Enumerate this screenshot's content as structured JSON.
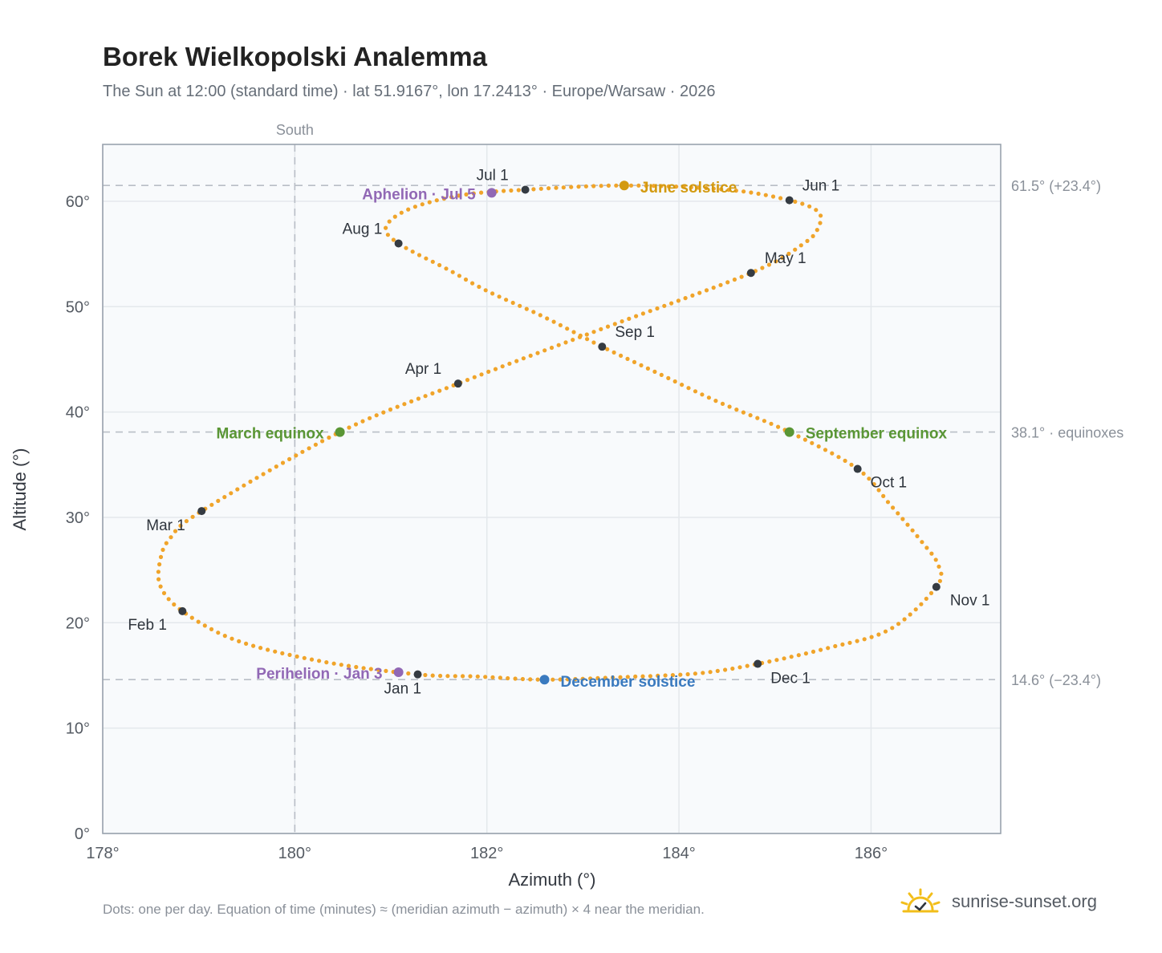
{
  "page": {
    "title": "Borek Wielkopolski Analemma",
    "subtitle": "The Sun at 12:00 (standard time) · lat 51.9167°, lon 17.2413° · Europe/Warsaw · 2026",
    "footnote": "Dots: one per day. Equation of time (minutes) ≈ (meridian azimuth − azimuth) × 4 near the meridian.",
    "brand": "sunrise-sunset.org"
  },
  "colors": {
    "path": "#f0a42a",
    "month_marker": "#353b42",
    "solstice_june": "#d39a10",
    "solstice_december": "#3a7abf",
    "equinox": "#5a9635",
    "apsis": "#9168b5",
    "reference_line": "#b9bec6",
    "grid": "#e4e8ec",
    "plot_bg": "#f8fafc",
    "frame": "#9aa3ae",
    "brand_sun": "#f2be1a"
  },
  "chart_data": {
    "type": "scatter",
    "title": "Borek Wielkopolski Analemma",
    "xlabel": "Azimuth (°)",
    "ylabel": "Altitude (°)",
    "xlim": [
      178,
      187.35
    ],
    "ylim": [
      0,
      65.4
    ],
    "xticks": [
      178,
      180,
      182,
      184,
      186
    ],
    "xtick_labels": [
      "178°",
      "180°",
      "182°",
      "184°",
      "186°"
    ],
    "yticks": [
      0,
      10,
      20,
      30,
      40,
      50,
      60
    ],
    "ytick_labels": [
      "0°",
      "10°",
      "20°",
      "30°",
      "40°",
      "50°",
      "60°"
    ],
    "grid": true,
    "meridian": {
      "x": 180,
      "label": "South"
    },
    "reference_lines": [
      {
        "y": 61.5,
        "label": "61.5° (+23.4°)"
      },
      {
        "y": 38.1,
        "label": "38.1° · equinoxes"
      },
      {
        "y": 14.6,
        "label": "14.6° (−23.4°)"
      }
    ],
    "series": [
      {
        "marker": "daily dot",
        "points": [
          [
            181.28,
            15.1
          ],
          [
            181.9,
            14.9
          ],
          [
            182.6,
            14.6
          ],
          [
            183.43,
            14.85
          ],
          [
            184.2,
            15.2
          ],
          [
            184.82,
            16.1
          ],
          [
            185.55,
            17.6
          ],
          [
            186.2,
            19.4
          ],
          [
            186.68,
            23.4
          ],
          [
            186.7,
            25.5
          ],
          [
            186.5,
            28.0
          ],
          [
            186.2,
            31.2
          ],
          [
            185.86,
            34.6
          ],
          [
            185.15,
            38.1
          ],
          [
            184.4,
            41.0
          ],
          [
            183.8,
            43.6
          ],
          [
            183.2,
            46.2
          ],
          [
            182.6,
            49.0
          ],
          [
            182.0,
            51.5
          ],
          [
            181.6,
            53.5
          ],
          [
            181.08,
            56.0
          ],
          [
            180.95,
            57.6
          ],
          [
            181.2,
            59.3
          ],
          [
            181.75,
            60.6
          ],
          [
            182.4,
            61.1
          ],
          [
            183.43,
            61.5
          ],
          [
            184.5,
            61.1
          ],
          [
            185.15,
            60.1
          ],
          [
            185.45,
            59.0
          ],
          [
            185.45,
            57.5
          ],
          [
            185.3,
            56.0
          ],
          [
            184.75,
            53.2
          ],
          [
            183.2,
            47.9
          ],
          [
            181.7,
            42.7
          ],
          [
            180.47,
            38.1
          ],
          [
            179.03,
            30.6
          ],
          [
            178.7,
            28.0
          ],
          [
            178.6,
            26.0
          ],
          [
            178.6,
            23.5
          ],
          [
            178.83,
            21.1
          ],
          [
            179.4,
            18.3
          ],
          [
            180.3,
            16.3
          ],
          [
            181.28,
            15.1
          ]
        ]
      }
    ],
    "month_markers": [
      {
        "label": "Jan 1",
        "x": 181.28,
        "y": 15.1
      },
      {
        "label": "Feb 1",
        "x": 178.83,
        "y": 21.1
      },
      {
        "label": "Mar 1",
        "x": 179.03,
        "y": 30.6
      },
      {
        "label": "Apr 1",
        "x": 181.7,
        "y": 42.7
      },
      {
        "label": "May 1",
        "x": 184.75,
        "y": 53.2
      },
      {
        "label": "Jun 1",
        "x": 185.15,
        "y": 60.1
      },
      {
        "label": "Jul 1",
        "x": 182.4,
        "y": 61.1
      },
      {
        "label": "Aug 1",
        "x": 181.08,
        "y": 56.0
      },
      {
        "label": "Sep 1",
        "x": 183.2,
        "y": 46.2
      },
      {
        "label": "Oct 1",
        "x": 185.86,
        "y": 34.6
      },
      {
        "label": "Nov 1",
        "x": 186.68,
        "y": 23.4
      },
      {
        "label": "Dec 1",
        "x": 184.82,
        "y": 16.1
      }
    ],
    "events": [
      {
        "label": "June solstice",
        "x": 183.43,
        "y": 61.5,
        "kind": "solstice_june"
      },
      {
        "label": "December solstice",
        "x": 182.6,
        "y": 14.6,
        "kind": "solstice_december"
      },
      {
        "label": "March equinox",
        "x": 180.47,
        "y": 38.1,
        "kind": "equinox"
      },
      {
        "label": "September equinox",
        "x": 185.15,
        "y": 38.1,
        "kind": "equinox"
      },
      {
        "label": "Aphelion · Jul 5",
        "x": 182.05,
        "y": 60.8,
        "kind": "apsis"
      },
      {
        "label": "Perihelion · Jan 3",
        "x": 181.08,
        "y": 15.3,
        "kind": "apsis"
      }
    ]
  }
}
